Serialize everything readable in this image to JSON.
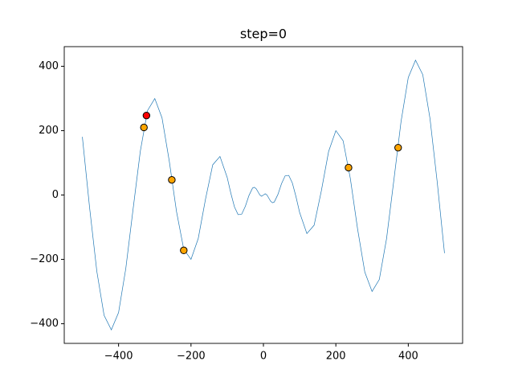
{
  "chart_data": {
    "type": "line",
    "title": "step=0",
    "x": [
      -500,
      -480,
      -460,
      -440,
      -420,
      -400,
      -380,
      -360,
      -340,
      -320,
      -300,
      -280,
      -260,
      -240,
      -220,
      -200,
      -180,
      -160,
      -140,
      -120,
      -100,
      -90,
      -80,
      -70,
      -60,
      -50,
      -40,
      -30,
      -25,
      -20,
      -15,
      -10,
      -5,
      0,
      5,
      10,
      15,
      20,
      25,
      30,
      40,
      50,
      60,
      70,
      80,
      90,
      100,
      120,
      140,
      160,
      180,
      200,
      220,
      240,
      260,
      280,
      300,
      320,
      340,
      360,
      380,
      400,
      420,
      440,
      460,
      480,
      500
    ],
    "series": [
      {
        "color": "#1f77b4",
        "values": [
          180.6,
          -39.4,
          -237.4,
          -374.0,
          -418.9,
          -365.2,
          -228.0,
          -44.6,
          135.7,
          262.4,
          299.7,
          239.7,
          105.5,
          -51.4,
          -168.7,
          -200.0,
          -135.2,
          -13.2,
          93.8,
          119.9,
          54.4,
          5.6,
          -36.9,
          -61.0,
          -59.6,
          -35.4,
          -1.7,
          21.7,
          24.0,
          19.4,
          10.0,
          0.2,
          -3.9,
          0,
          3.9,
          -0.2,
          -10.0,
          -19.4,
          -24.0,
          -21.7,
          1.7,
          35.4,
          59.6,
          61.0,
          36.9,
          -5.6,
          -54.4,
          -119.9,
          -93.8,
          13.2,
          135.2,
          200.0,
          168.7,
          51.4,
          -105.5,
          -239.7,
          -299.7,
          -262.4,
          -135.7,
          44.6,
          228.0,
          365.2,
          418.9,
          374.0,
          237.4,
          39.4,
          -180.6
        ]
      }
    ],
    "points": [
      {
        "color": "orange",
        "x": [
          -330,
          -253,
          -220,
          235,
          372
        ],
        "values": [
          210,
          47,
          -172,
          85,
          147
        ]
      },
      {
        "color": "red",
        "x": [
          -323
        ],
        "values": [
          247
        ]
      }
    ],
    "xlim": [
      -550,
      550
    ],
    "ylim": [
      -461,
      461
    ],
    "xticks": [
      {
        "value": -400,
        "label": "−400"
      },
      {
        "value": -200,
        "label": "−200"
      },
      0,
      200,
      400
    ],
    "yticks": [
      {
        "value": -400,
        "label": "−400"
      },
      {
        "value": -200,
        "label": "−200"
      },
      0,
      200,
      400
    ]
  }
}
